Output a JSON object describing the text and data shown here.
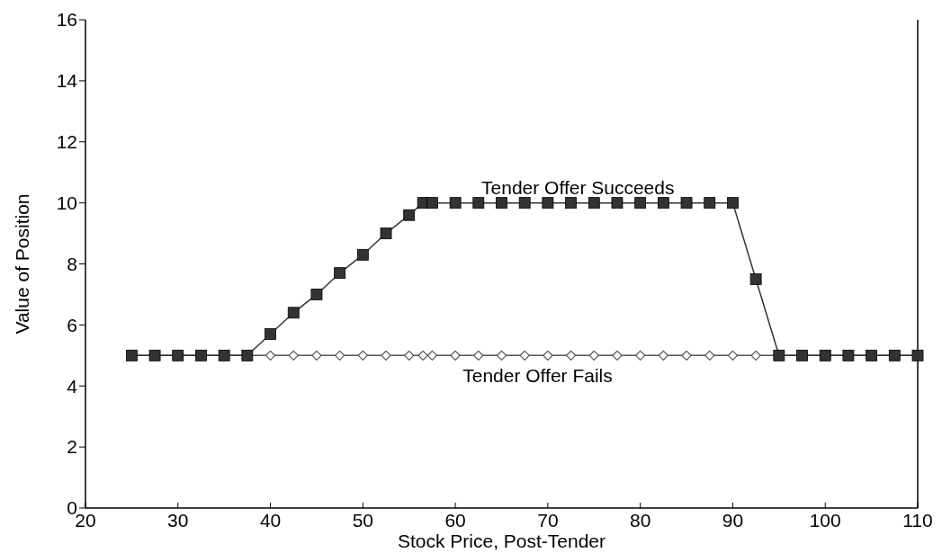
{
  "chart_data": {
    "type": "line",
    "xlabel": "Stock Price, Post-Tender",
    "ylabel": "Value of Position",
    "x": [
      25,
      27.5,
      30,
      32.5,
      35,
      37.5,
      40,
      42.5,
      45,
      47.5,
      50,
      52.5,
      55,
      56.5,
      57.5,
      60,
      62.5,
      65,
      67.5,
      70,
      72.5,
      75,
      77.5,
      80,
      82.5,
      85,
      87.5,
      90,
      92.5,
      95,
      97.5,
      100,
      102.5,
      105,
      107.5,
      110
    ],
    "series": [
      {
        "name": "Tender Offer Fails",
        "color": "#555555",
        "marker": "diamond",
        "values": [
          5,
          5,
          5,
          5,
          5,
          5,
          5,
          5,
          5,
          5,
          5,
          5,
          5,
          5,
          5,
          5,
          5,
          5,
          5,
          5,
          5,
          5,
          5,
          5,
          5,
          5,
          5,
          5,
          5,
          5,
          5,
          5,
          5,
          5,
          5,
          5
        ]
      },
      {
        "name": "Tender Offer Succeeds",
        "color": "#333333",
        "marker": "square",
        "values": [
          5,
          5,
          5,
          5,
          5,
          5,
          5.7,
          6.4,
          7,
          7.7,
          8.3,
          9,
          9.6,
          10,
          10,
          10,
          10,
          10,
          10,
          10,
          10,
          10,
          10,
          10,
          10,
          10,
          10,
          10,
          7.5,
          5,
          5,
          5,
          5,
          5,
          5,
          5
        ]
      }
    ],
    "xlim": [
      20,
      110
    ],
    "xticks": [
      20,
      30,
      40,
      50,
      60,
      70,
      80,
      90,
      100,
      110
    ],
    "ylim": [
      0,
      16
    ],
    "yticks": [
      0,
      2,
      4,
      6,
      8,
      10,
      12,
      14,
      16
    ],
    "grid": false,
    "line_style": "solid"
  }
}
